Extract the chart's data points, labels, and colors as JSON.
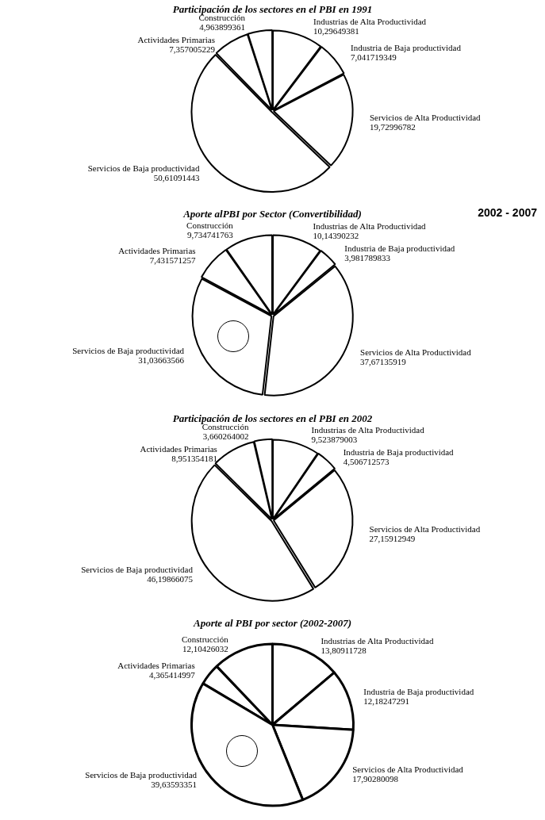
{
  "chart_data": [
    {
      "type": "pie",
      "title": "Participación de los sectores en el PBI en 1991",
      "categories": [
        "Actividades Primarias",
        "Construcción",
        "Industrias de Alta Productividad",
        "Industria de Baja productividad",
        "Servicios de Alta Productividad",
        "Servicios de Baja productividad"
      ],
      "values": [
        7.357005229,
        4.963899361,
        10.29649381,
        7.041719349,
        19.72996782,
        50.61091443
      ],
      "value_labels": [
        "7,357005229",
        "4,963899361",
        "10,29649381",
        "7,041719349",
        "19,72996782",
        "50,61091443"
      ],
      "colors": [
        "#ffffff",
        "#ffffff",
        "#ffffff",
        "#ffffff",
        "#ffffff",
        "#ffffff"
      ]
    },
    {
      "type": "pie",
      "title": "Aporte alPBI por Sector (Convertibilidad)",
      "annotations": [
        "2002 - 2007"
      ],
      "categories": [
        "Actividades Primarias",
        "Construcción",
        "Industrias de Alta Productividad",
        "Industria de Baja productividad",
        "Servicios de Alta Productividad",
        "Servicios de Baja productividad"
      ],
      "values": [
        7.431571257,
        9.734741763,
        10.14390232,
        3.981789833,
        37.67135919,
        31.03663566
      ],
      "value_labels": [
        "7,431571257",
        "9,734741763",
        "10,14390232",
        "3,981789833",
        "37,67135919",
        "31,03663566"
      ],
      "colors": [
        "#ffffff",
        "#ffffff",
        "#ffffff",
        "#ffffff",
        "#ffffff",
        "#ffffff"
      ]
    },
    {
      "type": "pie",
      "title": "Participación de los sectores en el PBI en 2002",
      "categories": [
        "Actividades Primarias",
        "Construcción",
        "Industrias de Alta Productividad",
        "Industria de Baja productividad",
        "Servicios de Alta Productividad",
        "Servicios de Baja productividad"
      ],
      "values": [
        8.951354181,
        3.660264002,
        9.523879003,
        4.506712573,
        27.15912949,
        46.19866075
      ],
      "value_labels": [
        "8,951354181",
        "3,660264002",
        "9,523879003",
        "4,506712573",
        "27,15912949",
        "46,19866075"
      ],
      "colors": [
        "#ffffff",
        "#ffffff",
        "#ffffff",
        "#ffffff",
        "#ffffff",
        "#ffffff"
      ]
    },
    {
      "type": "pie",
      "title": "Aporte al PBI por sector (2002-2007)",
      "categories": [
        "Actividades Primarias",
        "Construcción",
        "Industrias de Alta Productividad",
        "Industria de Baja productividad",
        "Servicios de Alta Productividad",
        "Servicios de Baja productividad"
      ],
      "values": [
        4.365414997,
        12.10426032,
        13.80911728,
        12.18247291,
        17.90280098,
        39.63593351
      ],
      "value_labels": [
        "4,365414997",
        "12,10426032",
        "13,80911728",
        "12,18247291",
        "17,90280098",
        "39,63593351"
      ],
      "colors": [
        "#ffffff",
        "#ffffff",
        "#ffffff",
        "#ffffff",
        "#ffffff",
        "#ffffff"
      ]
    }
  ]
}
